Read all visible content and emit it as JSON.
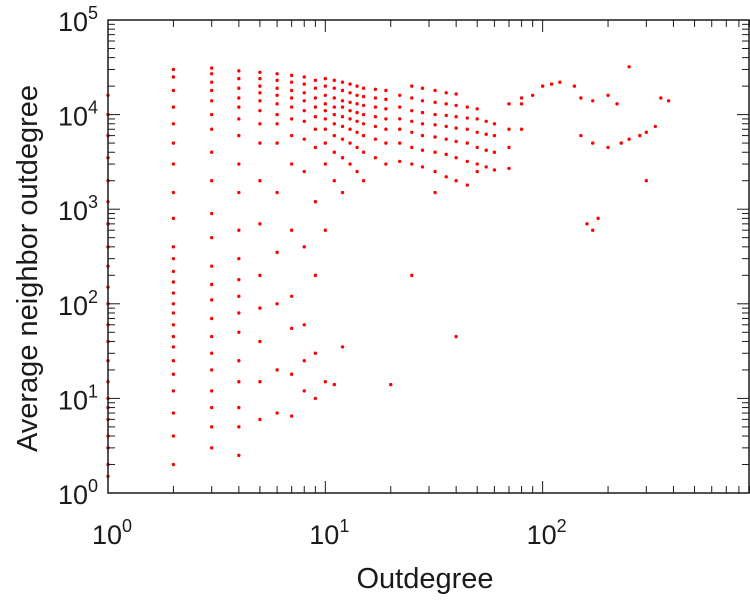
{
  "chart_data": {
    "type": "scatter",
    "xlabel": "Outdegree",
    "ylabel": "Average neighbor outdegree",
    "x_scale": "log",
    "y_scale": "log",
    "xlim": [
      1,
      900
    ],
    "ylim": [
      1,
      100000
    ],
    "grid": false,
    "marker_color": "#ff0000",
    "x_ticks": [
      {
        "base": "10",
        "exp": "0",
        "value": 1
      },
      {
        "base": "10",
        "exp": "1",
        "value": 10
      },
      {
        "base": "10",
        "exp": "2",
        "value": 100
      }
    ],
    "y_ticks": [
      {
        "base": "10",
        "exp": "0",
        "value": 1
      },
      {
        "base": "10",
        "exp": "1",
        "value": 10
      },
      {
        "base": "10",
        "exp": "2",
        "value": 100
      },
      {
        "base": "10",
        "exp": "3",
        "value": 1000
      },
      {
        "base": "10",
        "exp": "4",
        "value": 10000
      },
      {
        "base": "10",
        "exp": "5",
        "value": 100000
      }
    ],
    "points": [
      [
        1,
        1.5
      ],
      [
        1,
        2
      ],
      [
        1,
        3
      ],
      [
        1,
        4
      ],
      [
        1,
        6
      ],
      [
        1,
        8
      ],
      [
        1,
        10
      ],
      [
        1,
        15
      ],
      [
        1,
        25
      ],
      [
        1,
        40
      ],
      [
        1,
        60
      ],
      [
        1,
        100
      ],
      [
        1,
        150
      ],
      [
        1,
        250
      ],
      [
        1,
        400
      ],
      [
        1,
        700
      ],
      [
        1,
        1200
      ],
      [
        1,
        2000
      ],
      [
        1,
        3500
      ],
      [
        1,
        6000
      ],
      [
        1,
        10000
      ],
      [
        1,
        16000
      ],
      [
        2,
        2
      ],
      [
        2,
        4
      ],
      [
        2,
        7
      ],
      [
        2,
        12
      ],
      [
        2,
        18
      ],
      [
        2,
        25
      ],
      [
        2,
        35
      ],
      [
        2,
        45
      ],
      [
        2,
        60
      ],
      [
        2,
        80
      ],
      [
        2,
        100
      ],
      [
        2,
        130
      ],
      [
        2,
        170
      ],
      [
        2,
        220
      ],
      [
        2,
        300
      ],
      [
        2,
        400
      ],
      [
        2,
        800
      ],
      [
        2,
        1500
      ],
      [
        2,
        3000
      ],
      [
        2,
        5000
      ],
      [
        2,
        8000
      ],
      [
        2,
        12000
      ],
      [
        2,
        18000
      ],
      [
        2,
        25000
      ],
      [
        2,
        30000
      ],
      [
        3,
        3
      ],
      [
        3,
        5
      ],
      [
        3,
        8
      ],
      [
        3,
        12
      ],
      [
        3,
        20
      ],
      [
        3,
        30
      ],
      [
        3,
        45
      ],
      [
        3,
        70
      ],
      [
        3,
        110
      ],
      [
        3,
        160
      ],
      [
        3,
        250
      ],
      [
        3,
        500
      ],
      [
        3,
        900
      ],
      [
        3,
        2000
      ],
      [
        3,
        4000
      ],
      [
        3,
        7000
      ],
      [
        3,
        10000
      ],
      [
        3,
        14000
      ],
      [
        3,
        18000
      ],
      [
        3,
        22000
      ],
      [
        3,
        27000
      ],
      [
        3,
        31000
      ],
      [
        4,
        2.5
      ],
      [
        4,
        5
      ],
      [
        4,
        8
      ],
      [
        4,
        15
      ],
      [
        4,
        25
      ],
      [
        4,
        50
      ],
      [
        4,
        80
      ],
      [
        4,
        120
      ],
      [
        4,
        180
      ],
      [
        4,
        300
      ],
      [
        4,
        600
      ],
      [
        4,
        1500
      ],
      [
        4,
        3000
      ],
      [
        4,
        6000
      ],
      [
        4,
        9000
      ],
      [
        4,
        12000
      ],
      [
        4,
        15000
      ],
      [
        4,
        19000
      ],
      [
        4,
        24000
      ],
      [
        4,
        29000
      ],
      [
        5,
        6
      ],
      [
        5,
        15
      ],
      [
        5,
        40
      ],
      [
        5,
        90
      ],
      [
        5,
        200
      ],
      [
        5,
        700
      ],
      [
        5,
        2000
      ],
      [
        5,
        5000
      ],
      [
        5,
        8000
      ],
      [
        5,
        11000
      ],
      [
        5,
        14000
      ],
      [
        5,
        17000
      ],
      [
        5,
        20000
      ],
      [
        5,
        24000
      ],
      [
        5,
        28000
      ],
      [
        6,
        7
      ],
      [
        6,
        20
      ],
      [
        6,
        100
      ],
      [
        6,
        350
      ],
      [
        6,
        1500
      ],
      [
        6,
        5000
      ],
      [
        6,
        8000
      ],
      [
        6,
        10000
      ],
      [
        6,
        13000
      ],
      [
        6,
        16000
      ],
      [
        6,
        19000
      ],
      [
        6,
        23000
      ],
      [
        6,
        27000
      ],
      [
        7,
        6.5
      ],
      [
        7,
        18
      ],
      [
        7,
        55
      ],
      [
        7,
        120
      ],
      [
        7,
        600
      ],
      [
        7,
        3000
      ],
      [
        7,
        6000
      ],
      [
        7,
        9000
      ],
      [
        7,
        12000
      ],
      [
        7,
        15000
      ],
      [
        7,
        18000
      ],
      [
        7,
        22000
      ],
      [
        7,
        26000
      ],
      [
        8,
        12
      ],
      [
        8,
        25
      ],
      [
        8,
        60
      ],
      [
        8,
        400
      ],
      [
        8,
        2500
      ],
      [
        8,
        5500
      ],
      [
        8,
        8500
      ],
      [
        8,
        11000
      ],
      [
        8,
        14000
      ],
      [
        8,
        17000
      ],
      [
        8,
        21000
      ],
      [
        8,
        25000
      ],
      [
        9,
        10
      ],
      [
        9,
        30
      ],
      [
        9,
        200
      ],
      [
        9,
        1200
      ],
      [
        9,
        4500
      ],
      [
        9,
        7000
      ],
      [
        9,
        9500
      ],
      [
        9,
        12000
      ],
      [
        9,
        15000
      ],
      [
        9,
        19000
      ],
      [
        9,
        23000
      ],
      [
        10,
        15
      ],
      [
        10,
        600
      ],
      [
        10,
        3000
      ],
      [
        10,
        5000
      ],
      [
        10,
        7000
      ],
      [
        10,
        9000
      ],
      [
        10,
        11000
      ],
      [
        10,
        13000
      ],
      [
        10,
        16000
      ],
      [
        10,
        20000
      ],
      [
        10,
        24000
      ],
      [
        11,
        14
      ],
      [
        11,
        2000
      ],
      [
        11,
        4000
      ],
      [
        11,
        6000
      ],
      [
        11,
        8000
      ],
      [
        11,
        10000
      ],
      [
        11,
        12000
      ],
      [
        11,
        15000
      ],
      [
        11,
        19000
      ],
      [
        11,
        23000
      ],
      [
        12,
        35
      ],
      [
        12,
        1500
      ],
      [
        12,
        3500
      ],
      [
        12,
        5500
      ],
      [
        12,
        7500
      ],
      [
        12,
        9500
      ],
      [
        12,
        12000
      ],
      [
        12,
        14000
      ],
      [
        12,
        18000
      ],
      [
        12,
        22000
      ],
      [
        13,
        3000
      ],
      [
        13,
        5000
      ],
      [
        13,
        7000
      ],
      [
        13,
        9000
      ],
      [
        13,
        11000
      ],
      [
        13,
        13500
      ],
      [
        13,
        17000
      ],
      [
        13,
        21000
      ],
      [
        14,
        2500
      ],
      [
        14,
        4500
      ],
      [
        14,
        6500
      ],
      [
        14,
        8500
      ],
      [
        14,
        10500
      ],
      [
        14,
        13000
      ],
      [
        14,
        16000
      ],
      [
        14,
        20000
      ],
      [
        15,
        2000
      ],
      [
        15,
        4000
      ],
      [
        15,
        6000
      ],
      [
        15,
        8000
      ],
      [
        15,
        10000
      ],
      [
        15,
        12500
      ],
      [
        15,
        15500
      ],
      [
        15,
        19000
      ],
      [
        17,
        3500
      ],
      [
        17,
        5500
      ],
      [
        17,
        7500
      ],
      [
        17,
        9500
      ],
      [
        17,
        12000
      ],
      [
        17,
        15000
      ],
      [
        17,
        18500
      ],
      [
        19,
        3000
      ],
      [
        19,
        5000
      ],
      [
        19,
        7000
      ],
      [
        19,
        9000
      ],
      [
        19,
        11500
      ],
      [
        19,
        14500
      ],
      [
        19,
        18000
      ],
      [
        20,
        14
      ],
      [
        22,
        3200
      ],
      [
        22,
        5000
      ],
      [
        22,
        7000
      ],
      [
        22,
        9000
      ],
      [
        22,
        12000
      ],
      [
        22,
        16000
      ],
      [
        25,
        200
      ],
      [
        25,
        3000
      ],
      [
        25,
        4500
      ],
      [
        25,
        6500
      ],
      [
        25,
        8500
      ],
      [
        25,
        11000
      ],
      [
        25,
        15000
      ],
      [
        25,
        20000
      ],
      [
        28,
        2800
      ],
      [
        28,
        4200
      ],
      [
        28,
        6000
      ],
      [
        28,
        8000
      ],
      [
        28,
        10500
      ],
      [
        28,
        14000
      ],
      [
        28,
        19000
      ],
      [
        32,
        1500
      ],
      [
        32,
        2500
      ],
      [
        32,
        4000
      ],
      [
        32,
        5800
      ],
      [
        32,
        7800
      ],
      [
        32,
        10000
      ],
      [
        32,
        13500
      ],
      [
        32,
        18000
      ],
      [
        36,
        2200
      ],
      [
        36,
        3800
      ],
      [
        36,
        5500
      ],
      [
        36,
        7500
      ],
      [
        36,
        9800
      ],
      [
        36,
        13000
      ],
      [
        36,
        17000
      ],
      [
        40,
        45
      ],
      [
        40,
        2000
      ],
      [
        40,
        3500
      ],
      [
        40,
        5200
      ],
      [
        40,
        7200
      ],
      [
        40,
        9500
      ],
      [
        40,
        12500
      ],
      [
        40,
        16500
      ],
      [
        45,
        1800
      ],
      [
        45,
        3200
      ],
      [
        45,
        5000
      ],
      [
        45,
        7000
      ],
      [
        45,
        9200
      ],
      [
        45,
        12000
      ],
      [
        50,
        2500
      ],
      [
        50,
        3000
      ],
      [
        50,
        4500
      ],
      [
        50,
        6500
      ],
      [
        50,
        9000
      ],
      [
        50,
        11500
      ],
      [
        55,
        2800
      ],
      [
        55,
        4200
      ],
      [
        55,
        6200
      ],
      [
        55,
        8500
      ],
      [
        60,
        2600
      ],
      [
        60,
        4000
      ],
      [
        60,
        6000
      ],
      [
        60,
        8000
      ],
      [
        70,
        2700
      ],
      [
        70,
        4500
      ],
      [
        70,
        7000
      ],
      [
        70,
        13000
      ],
      [
        80,
        7000
      ],
      [
        80,
        13000
      ],
      [
        80,
        15000
      ],
      [
        90,
        16000
      ],
      [
        100,
        20000
      ],
      [
        110,
        21000
      ],
      [
        120,
        22000
      ],
      [
        140,
        20000
      ],
      [
        150,
        15000
      ],
      [
        170,
        14000
      ],
      [
        200,
        16000
      ],
      [
        220,
        13000
      ],
      [
        160,
        700
      ],
      [
        170,
        600
      ],
      [
        180,
        800
      ],
      [
        150,
        6000
      ],
      [
        170,
        5000
      ],
      [
        200,
        4500
      ],
      [
        230,
        5000
      ],
      [
        250,
        5500
      ],
      [
        280,
        6000
      ],
      [
        300,
        6500
      ],
      [
        330,
        7500
      ],
      [
        250,
        32000
      ],
      [
        300,
        2000
      ],
      [
        350,
        15000
      ],
      [
        380,
        14000
      ]
    ]
  }
}
